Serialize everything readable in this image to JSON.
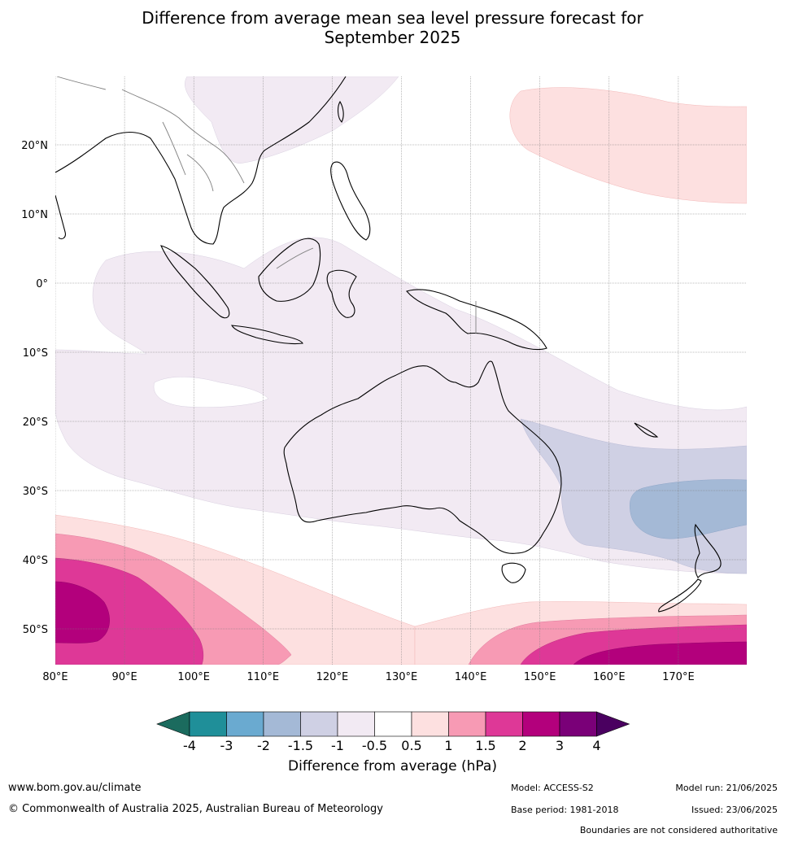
{
  "title_line1": "Difference from average mean sea level pressure forecast for",
  "title_line2": "September 2025",
  "lat_labels": [
    "20°N",
    "10°N",
    "0°",
    "10°S",
    "20°S",
    "30°S",
    "40°S",
    "50°S"
  ],
  "lon_labels": [
    "80°E",
    "90°E",
    "100°E",
    "110°E",
    "120°E",
    "130°E",
    "140°E",
    "150°E",
    "160°E",
    "170°E"
  ],
  "colorbar": {
    "ticks": [
      "-4",
      "-3",
      "-2",
      "-1.5",
      "-1",
      "-0.5",
      "0.5",
      "1",
      "1.5",
      "2",
      "3",
      "4"
    ],
    "colors": [
      "#1b6b5e",
      "#1f8f99",
      "#6aaad0",
      "#a4b9d6",
      "#cfd0e4",
      "#f2eaf3",
      "#ffffff",
      "#fde0e0",
      "#f79ab4",
      "#de3897",
      "#b3007c",
      "#7a0078",
      "#4a0060"
    ],
    "label": "Difference from average (hPa)"
  },
  "footer": {
    "url": "www.bom.gov.au/climate",
    "copyright": "© Commonwealth of Australia 2025, Australian Bureau of Meteorology",
    "model": "Model: ACCESS-S2",
    "base_period": "Base period: 1981-2018",
    "model_run": "Model run: 21/06/2025",
    "issued": "Issued: 23/06/2025",
    "boundaries": "Boundaries are not considered authoritative"
  }
}
